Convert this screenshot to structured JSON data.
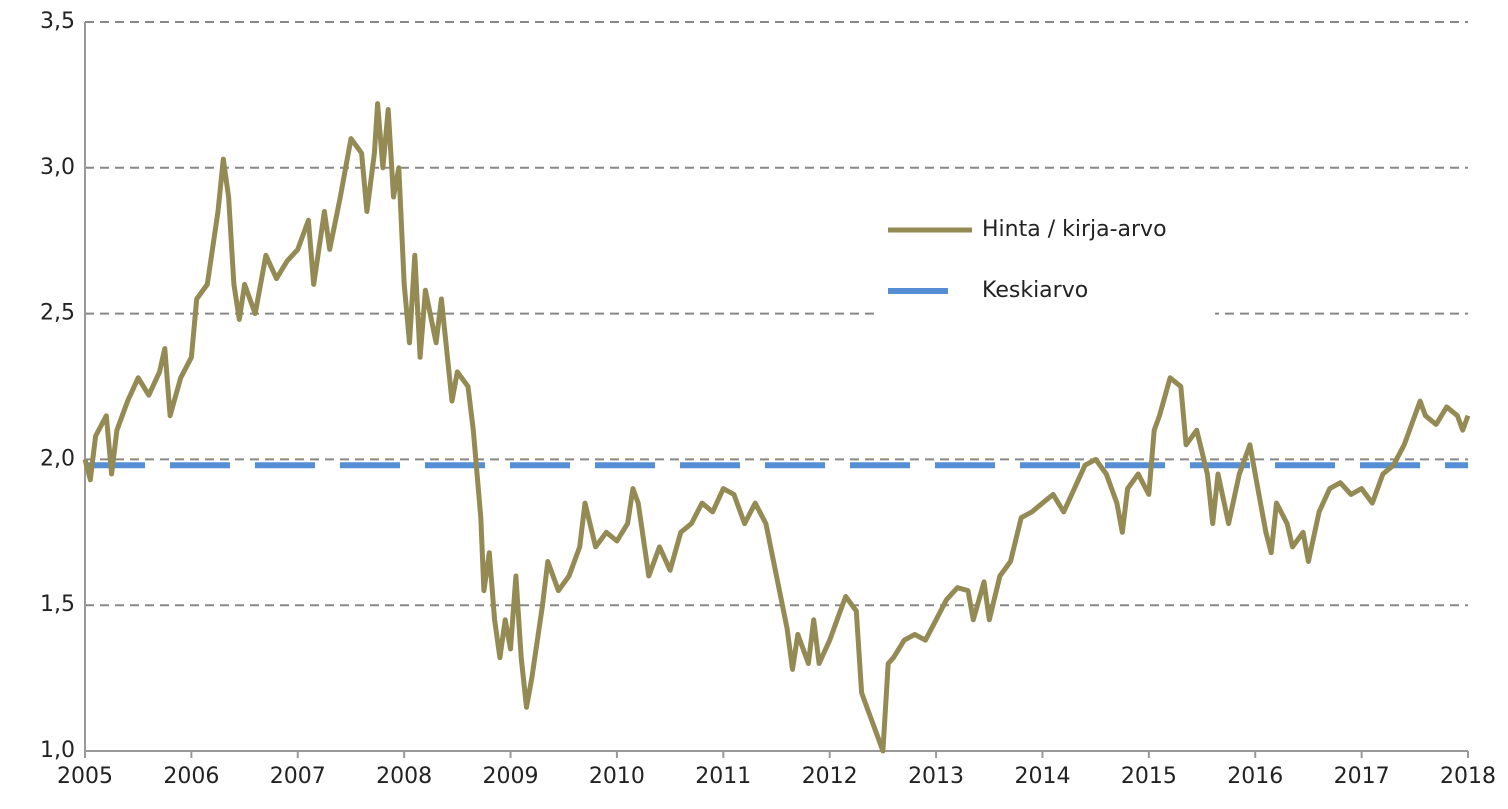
{
  "chart_data": {
    "type": "line",
    "xlim": [
      2005,
      2018
    ],
    "xticks": [
      2005,
      2006,
      2007,
      2008,
      2009,
      2010,
      2011,
      2012,
      2013,
      2014,
      2015,
      2016,
      2017,
      2018
    ],
    "ylim": [
      1.0,
      3.5
    ],
    "yticks": [
      {
        "value": 1.0,
        "label": "1,0"
      },
      {
        "value": 1.5,
        "label": "1,5"
      },
      {
        "value": 2.0,
        "label": "2,0"
      },
      {
        "value": 2.5,
        "label": "2,5"
      },
      {
        "value": 3.0,
        "label": "3,0"
      },
      {
        "value": 3.5,
        "label": "3,5"
      }
    ],
    "grid": true,
    "series": [
      {
        "name": "Hinta / kirja-arvo",
        "color": "#948a54",
        "dashed": false,
        "x": [
          2005.0,
          2005.05,
          2005.1,
          2005.2,
          2005.25,
          2005.3,
          2005.4,
          2005.5,
          2005.6,
          2005.7,
          2005.75,
          2005.8,
          2005.9,
          2006.0,
          2006.05,
          2006.15,
          2006.25,
          2006.3,
          2006.35,
          2006.4,
          2006.45,
          2006.5,
          2006.6,
          2006.7,
          2006.8,
          2006.9,
          2007.0,
          2007.1,
          2007.15,
          2007.25,
          2007.3,
          2007.4,
          2007.5,
          2007.6,
          2007.65,
          2007.72,
          2007.75,
          2007.8,
          2007.85,
          2007.9,
          2007.95,
          2008.0,
          2008.05,
          2008.1,
          2008.15,
          2008.2,
          2008.3,
          2008.35,
          2008.45,
          2008.5,
          2008.6,
          2008.65,
          2008.72,
          2008.75,
          2008.8,
          2008.85,
          2008.9,
          2008.95,
          2009.0,
          2009.05,
          2009.1,
          2009.15,
          2009.2,
          2009.3,
          2009.35,
          2009.45,
          2009.55,
          2009.65,
          2009.7,
          2009.8,
          2009.9,
          2010.0,
          2010.1,
          2010.15,
          2010.2,
          2010.3,
          2010.4,
          2010.5,
          2010.6,
          2010.7,
          2010.8,
          2010.9,
          2011.0,
          2011.1,
          2011.2,
          2011.3,
          2011.4,
          2011.5,
          2011.6,
          2011.65,
          2011.7,
          2011.8,
          2011.85,
          2011.9,
          2012.0,
          2012.1,
          2012.15,
          2012.25,
          2012.3,
          2012.35,
          2012.45,
          2012.5,
          2012.55,
          2012.6,
          2012.7,
          2012.8,
          2012.9,
          2013.0,
          2013.1,
          2013.2,
          2013.3,
          2013.35,
          2013.45,
          2013.5,
          2013.6,
          2013.7,
          2013.8,
          2013.9,
          2014.0,
          2014.1,
          2014.2,
          2014.3,
          2014.4,
          2014.5,
          2014.6,
          2014.7,
          2014.75,
          2014.8,
          2014.9,
          2015.0,
          2015.05,
          2015.1,
          2015.2,
          2015.3,
          2015.35,
          2015.45,
          2015.55,
          2015.6,
          2015.65,
          2015.75,
          2015.85,
          2015.95,
          2016.0,
          2016.05,
          2016.1,
          2016.15,
          2016.2,
          2016.3,
          2016.35,
          2016.45,
          2016.5,
          2016.6,
          2016.7,
          2016.8,
          2016.9,
          2017.0,
          2017.1,
          2017.2,
          2017.3,
          2017.4,
          2017.5,
          2017.55,
          2017.6,
          2017.7,
          2017.8,
          2017.9,
          2017.95,
          2018.0
        ],
        "values": [
          2.0,
          1.93,
          2.08,
          2.15,
          1.95,
          2.1,
          2.2,
          2.28,
          2.22,
          2.3,
          2.38,
          2.15,
          2.28,
          2.35,
          2.55,
          2.6,
          2.85,
          3.03,
          2.9,
          2.6,
          2.48,
          2.6,
          2.5,
          2.7,
          2.62,
          2.68,
          2.72,
          2.82,
          2.6,
          2.85,
          2.72,
          2.9,
          3.1,
          3.05,
          2.85,
          3.05,
          3.22,
          3.0,
          3.2,
          2.9,
          3.0,
          2.6,
          2.4,
          2.7,
          2.35,
          2.58,
          2.4,
          2.55,
          2.2,
          2.3,
          2.25,
          2.1,
          1.8,
          1.55,
          1.68,
          1.45,
          1.32,
          1.45,
          1.35,
          1.6,
          1.32,
          1.15,
          1.25,
          1.5,
          1.65,
          1.55,
          1.6,
          1.7,
          1.85,
          1.7,
          1.75,
          1.72,
          1.78,
          1.9,
          1.85,
          1.6,
          1.7,
          1.62,
          1.75,
          1.78,
          1.85,
          1.82,
          1.9,
          1.88,
          1.78,
          1.85,
          1.78,
          1.6,
          1.42,
          1.28,
          1.4,
          1.3,
          1.45,
          1.3,
          1.38,
          1.48,
          1.53,
          1.48,
          1.2,
          1.15,
          1.05,
          1.0,
          1.3,
          1.32,
          1.38,
          1.4,
          1.38,
          1.45,
          1.52,
          1.56,
          1.55,
          1.45,
          1.58,
          1.45,
          1.6,
          1.65,
          1.8,
          1.82,
          1.85,
          1.88,
          1.82,
          1.9,
          1.98,
          2.0,
          1.95,
          1.85,
          1.75,
          1.9,
          1.95,
          1.88,
          2.1,
          2.15,
          2.28,
          2.25,
          2.05,
          2.1,
          1.95,
          1.78,
          1.95,
          1.78,
          1.95,
          2.05,
          1.95,
          1.85,
          1.75,
          1.68,
          1.85,
          1.78,
          1.7,
          1.75,
          1.65,
          1.82,
          1.9,
          1.92,
          1.88,
          1.9,
          1.85,
          1.95,
          1.98,
          2.05,
          2.15,
          2.2,
          2.15,
          2.12,
          2.18,
          2.15,
          2.1,
          2.15
        ]
      },
      {
        "name": "Keskiarvo",
        "color": "#558ed5",
        "dashed": true,
        "x": [
          2005,
          2018
        ],
        "values": [
          1.98,
          1.98
        ]
      }
    ]
  }
}
